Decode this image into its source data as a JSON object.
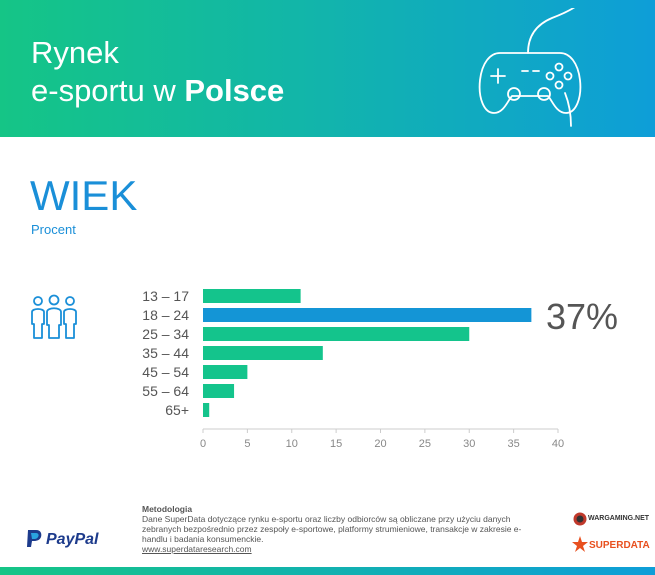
{
  "header": {
    "title_line1": "Rynek",
    "title_line2_prefix": "e-sportu w ",
    "title_line2_bold": "Polsce",
    "icon": "gamepad-icon"
  },
  "section": {
    "title": "WIEK",
    "subtitle": "Procent",
    "icon": "people-group-icon"
  },
  "highlight": {
    "value_label": "37%"
  },
  "chart_data": {
    "type": "bar",
    "orientation": "horizontal",
    "categories": [
      "13 – 17",
      "18 – 24",
      "25 – 34",
      "35 – 44",
      "45 – 54",
      "55 – 64",
      "65+"
    ],
    "values": [
      11,
      37,
      30,
      13.5,
      5,
      3.5,
      0.7
    ],
    "highlight_index": 1,
    "xlim": [
      0,
      40
    ],
    "xticks": [
      "0",
      "5",
      "10",
      "15",
      "20",
      "25",
      "30",
      "35",
      "40"
    ],
    "colors": {
      "bar": "#14c48c",
      "bar_highlight": "#1495d6",
      "axis": "#cccccc",
      "tick_text": "#888888",
      "category_text": "#555555"
    },
    "grid": false
  },
  "methodology": {
    "title": "Metodologia",
    "text": "Dane SuperData dotyczące rynku e-sportu oraz liczby odbiorców są obliczane przy użyciu danych zebranych bezpośrednio przez zespoły e-sportowe, platformy strumieniowe, transakcje w zakresie e-handlu i badania konsumenckie.",
    "link": "www.superdataresearch.com"
  },
  "logos": {
    "paypal": "PayPal",
    "wargaming": "WARGAMING.NET",
    "superdata": "SUPERDATA"
  }
}
